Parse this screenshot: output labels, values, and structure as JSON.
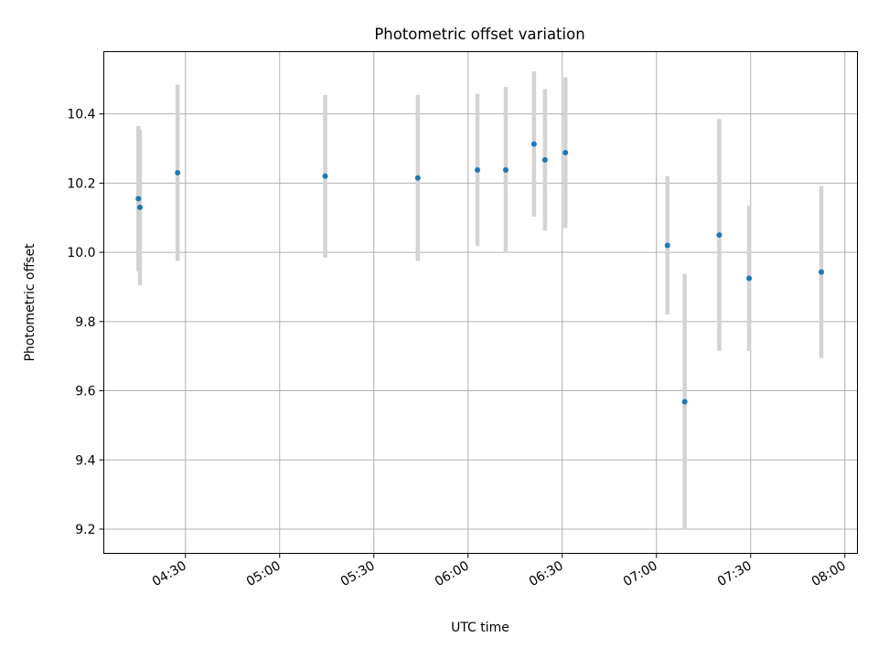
{
  "chart_data": {
    "type": "scatter",
    "title": "Photometric offset variation",
    "xlabel": "UTC time",
    "ylabel": "Photometric offset",
    "x_tick_labels": [
      "04:30",
      "05:00",
      "05:30",
      "06:00",
      "06:30",
      "07:00",
      "07:30",
      "08:00"
    ],
    "y_tick_labels": [
      "9.2",
      "9.4",
      "9.6",
      "9.8",
      "10.0",
      "10.2",
      "10.4"
    ],
    "xlim": [
      "04:04:00",
      "08:04:00"
    ],
    "ylim": [
      9.13,
      10.58
    ],
    "grid": true,
    "colors": {
      "points": "#1f77b4",
      "error_bars": "#d3d3d3",
      "grid": "#b0b0b0"
    },
    "points": [
      {
        "x": "04:15:00",
        "y": 10.155,
        "err": 0.21
      },
      {
        "x": "04:15:30",
        "y": 10.13,
        "err": 0.225
      },
      {
        "x": "04:27:30",
        "y": 10.23,
        "err": 0.255
      },
      {
        "x": "05:14:30",
        "y": 10.22,
        "err": 0.235
      },
      {
        "x": "05:44:00",
        "y": 10.215,
        "err": 0.24
      },
      {
        "x": "06:03:00",
        "y": 10.238,
        "err": 0.22
      },
      {
        "x": "06:12:00",
        "y": 10.238,
        "err": 0.24
      },
      {
        "x": "06:21:00",
        "y": 10.313,
        "err": 0.21
      },
      {
        "x": "06:24:30",
        "y": 10.267,
        "err": 0.205
      },
      {
        "x": "06:31:00",
        "y": 10.288,
        "err": 0.218
      },
      {
        "x": "07:03:30",
        "y": 10.02,
        "err": 0.2
      },
      {
        "x": "07:09:00",
        "y": 9.568,
        "err": 0.37
      },
      {
        "x": "07:20:00",
        "y": 10.05,
        "err": 0.335
      },
      {
        "x": "07:29:30",
        "y": 9.925,
        "err": 0.21
      },
      {
        "x": "07:52:30",
        "y": 9.943,
        "err": 0.248
      }
    ]
  }
}
